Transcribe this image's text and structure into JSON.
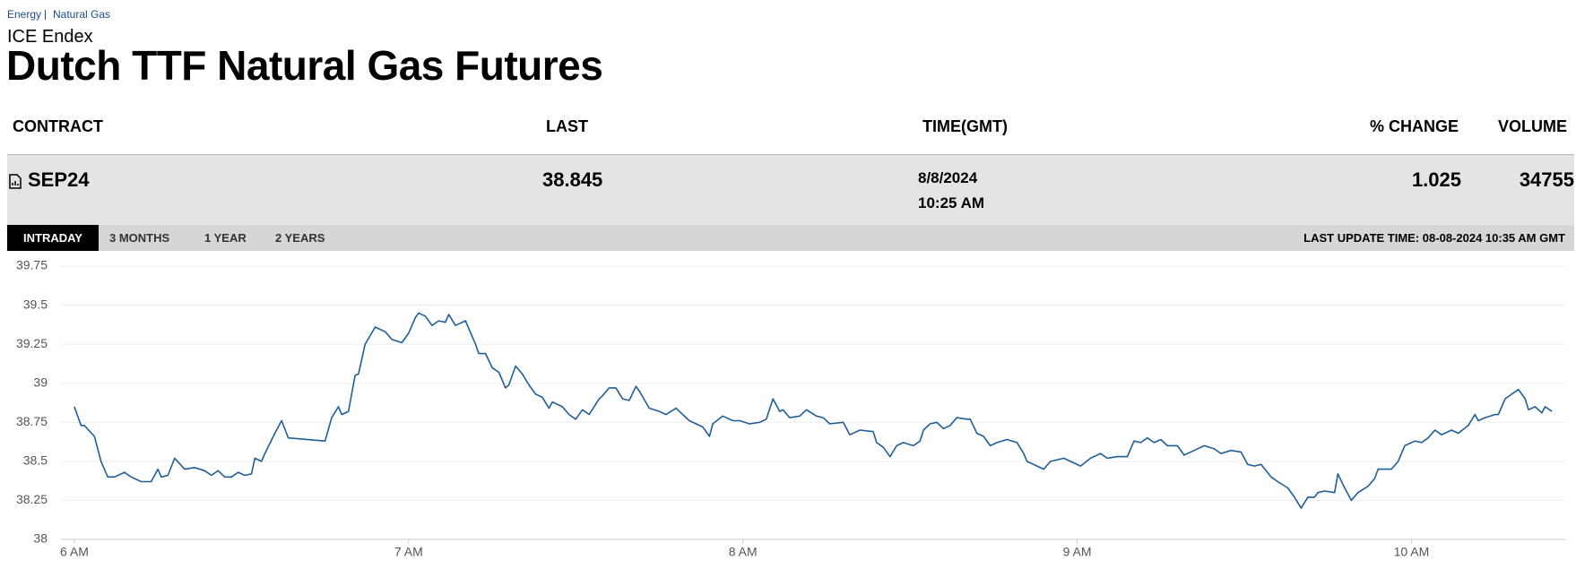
{
  "breadcrumb": [
    "Energy",
    "Natural Gas"
  ],
  "exchange": "ICE Endex",
  "title": "Dutch TTF Natural Gas Futures",
  "table": {
    "headers": [
      "CONTRACT",
      "LAST",
      "TIME(GMT)",
      "% CHANGE",
      "VOLUME"
    ],
    "row": {
      "contract": "SEP24",
      "last": 38.845,
      "date": "8/8/2024",
      "time": "10:25 AM",
      "change": 1.025,
      "volume": 34755
    }
  },
  "tabs": [
    "INTRADAY",
    "3 MONTHS",
    "1 YEAR",
    "2 YEARS"
  ],
  "last_update": "LAST UPDATE TIME: 08-08-2024 10:35 AM GMT",
  "chart_data": {
    "type": "line",
    "color": "#1f5f99",
    "grid": true,
    "xlim": [
      5.96,
      10.46
    ],
    "xticks": [
      {
        "value": 6,
        "label": "6 AM"
      },
      {
        "value": 7,
        "label": "7 AM"
      },
      {
        "value": 8,
        "label": "8 AM"
      },
      {
        "value": 9,
        "label": "9 AM"
      },
      {
        "value": 10,
        "label": "10 AM"
      }
    ],
    "ylim": [
      38,
      39.75
    ],
    "yticks": [
      38,
      38.25,
      38.5,
      38.75,
      39,
      39.25,
      39.5,
      39.75
    ],
    "x": [
      6.0,
      6.02,
      6.03,
      6.06,
      6.08,
      6.1,
      6.12,
      6.15,
      6.17,
      6.2,
      6.23,
      6.25,
      6.26,
      6.28,
      6.3,
      6.33,
      6.36,
      6.39,
      6.41,
      6.43,
      6.45,
      6.47,
      6.49,
      6.51,
      6.53,
      6.54,
      6.56,
      6.57,
      6.6,
      6.62,
      6.64,
      6.75,
      6.77,
      6.79,
      6.8,
      6.82,
      6.84,
      6.85,
      6.87,
      6.9,
      6.93,
      6.95,
      6.98,
      7.0,
      7.02,
      7.03,
      7.05,
      7.07,
      7.09,
      7.11,
      7.12,
      7.14,
      7.17,
      7.2,
      7.21,
      7.23,
      7.25,
      7.27,
      7.29,
      7.3,
      7.32,
      7.34,
      7.36,
      7.38,
      7.4,
      7.42,
      7.43,
      7.46,
      7.48,
      7.5,
      7.52,
      7.54,
      7.57,
      7.58,
      7.6,
      7.62,
      7.64,
      7.66,
      7.68,
      7.69,
      7.72,
      7.75,
      7.77,
      7.8,
      7.82,
      7.84,
      7.88,
      7.9,
      7.91,
      7.94,
      7.97,
      7.99,
      8.02,
      8.05,
      8.07,
      8.09,
      8.11,
      8.12,
      8.14,
      8.17,
      8.19,
      8.22,
      8.24,
      8.26,
      8.3,
      8.32,
      8.35,
      8.39,
      8.4,
      8.42,
      8.44,
      8.46,
      8.48,
      8.51,
      8.53,
      8.54,
      8.56,
      8.58,
      8.6,
      8.62,
      8.64,
      8.67,
      8.68,
      8.7,
      8.72,
      8.74,
      8.76,
      8.79,
      8.82,
      8.84,
      8.85,
      8.88,
      8.9,
      8.92,
      8.96,
      8.98,
      9.01,
      9.04,
      9.07,
      9.09,
      9.12,
      9.15,
      9.17,
      9.19,
      9.21,
      9.23,
      9.25,
      9.27,
      9.3,
      9.32,
      9.35,
      9.38,
      9.41,
      9.43,
      9.46,
      9.49,
      9.51,
      9.53,
      9.55,
      9.58,
      9.6,
      9.63,
      9.65,
      9.67,
      9.69,
      9.71,
      9.72,
      9.74,
      9.77,
      9.78,
      9.8,
      9.82,
      9.84,
      9.87,
      9.89,
      9.9,
      9.94,
      9.96,
      9.98,
      10.01,
      10.03,
      10.05,
      10.07,
      10.09,
      10.12,
      10.14,
      10.17,
      10.19,
      10.2,
      10.22,
      10.25,
      10.26,
      10.28,
      10.3,
      10.32,
      10.34,
      10.35,
      10.37,
      10.39,
      10.4,
      10.42
    ],
    "series": [
      {
        "values": [
          38.85,
          38.73,
          38.73,
          38.66,
          38.5,
          38.4,
          38.4,
          38.43,
          38.4,
          38.37,
          38.37,
          38.45,
          38.4,
          38.41,
          38.52,
          38.45,
          38.46,
          38.44,
          38.41,
          38.44,
          38.4,
          38.4,
          38.43,
          38.41,
          38.42,
          38.52,
          38.5,
          38.55,
          38.68,
          38.76,
          38.65,
          38.63,
          38.78,
          38.85,
          38.8,
          38.82,
          39.05,
          39.06,
          39.25,
          39.36,
          39.33,
          39.28,
          39.26,
          39.32,
          39.42,
          39.45,
          39.43,
          39.37,
          39.4,
          39.39,
          39.44,
          39.37,
          39.4,
          39.25,
          39.19,
          39.19,
          39.1,
          39.07,
          38.97,
          38.99,
          39.11,
          39.06,
          38.99,
          38.93,
          38.91,
          38.84,
          38.88,
          38.85,
          38.8,
          38.77,
          38.83,
          38.8,
          38.9,
          38.92,
          38.97,
          38.97,
          38.9,
          38.89,
          38.98,
          38.95,
          38.84,
          38.82,
          38.8,
          38.84,
          38.8,
          38.76,
          38.72,
          38.66,
          38.74,
          38.79,
          38.76,
          38.76,
          38.74,
          38.75,
          38.77,
          38.9,
          38.82,
          38.83,
          38.78,
          38.79,
          38.83,
          38.79,
          38.78,
          38.74,
          38.75,
          38.67,
          38.7,
          38.69,
          38.62,
          38.59,
          38.53,
          38.6,
          38.62,
          38.6,
          38.63,
          38.7,
          38.74,
          38.75,
          38.71,
          38.73,
          38.78,
          38.77,
          38.77,
          38.68,
          38.66,
          38.6,
          38.62,
          38.64,
          38.62,
          38.55,
          38.5,
          38.47,
          38.45,
          38.5,
          38.52,
          38.5,
          38.47,
          38.52,
          38.55,
          38.52,
          38.53,
          38.53,
          38.63,
          38.62,
          38.65,
          38.62,
          38.64,
          38.6,
          38.6,
          38.54,
          38.57,
          38.6,
          38.58,
          38.55,
          38.57,
          38.56,
          38.48,
          38.47,
          38.48,
          38.4,
          38.37,
          38.33,
          38.27,
          38.2,
          38.27,
          38.27,
          38.3,
          38.31,
          38.3,
          38.42,
          38.33,
          38.25,
          38.3,
          38.34,
          38.39,
          38.45,
          38.45,
          38.5,
          38.6,
          38.63,
          38.62,
          38.65,
          38.7,
          38.67,
          38.7,
          38.68,
          38.73,
          38.8,
          38.76,
          38.78,
          38.8,
          38.8,
          38.9,
          38.93,
          38.96,
          38.9,
          38.83,
          38.85,
          38.81,
          38.85,
          38.82
        ]
      }
    ]
  }
}
